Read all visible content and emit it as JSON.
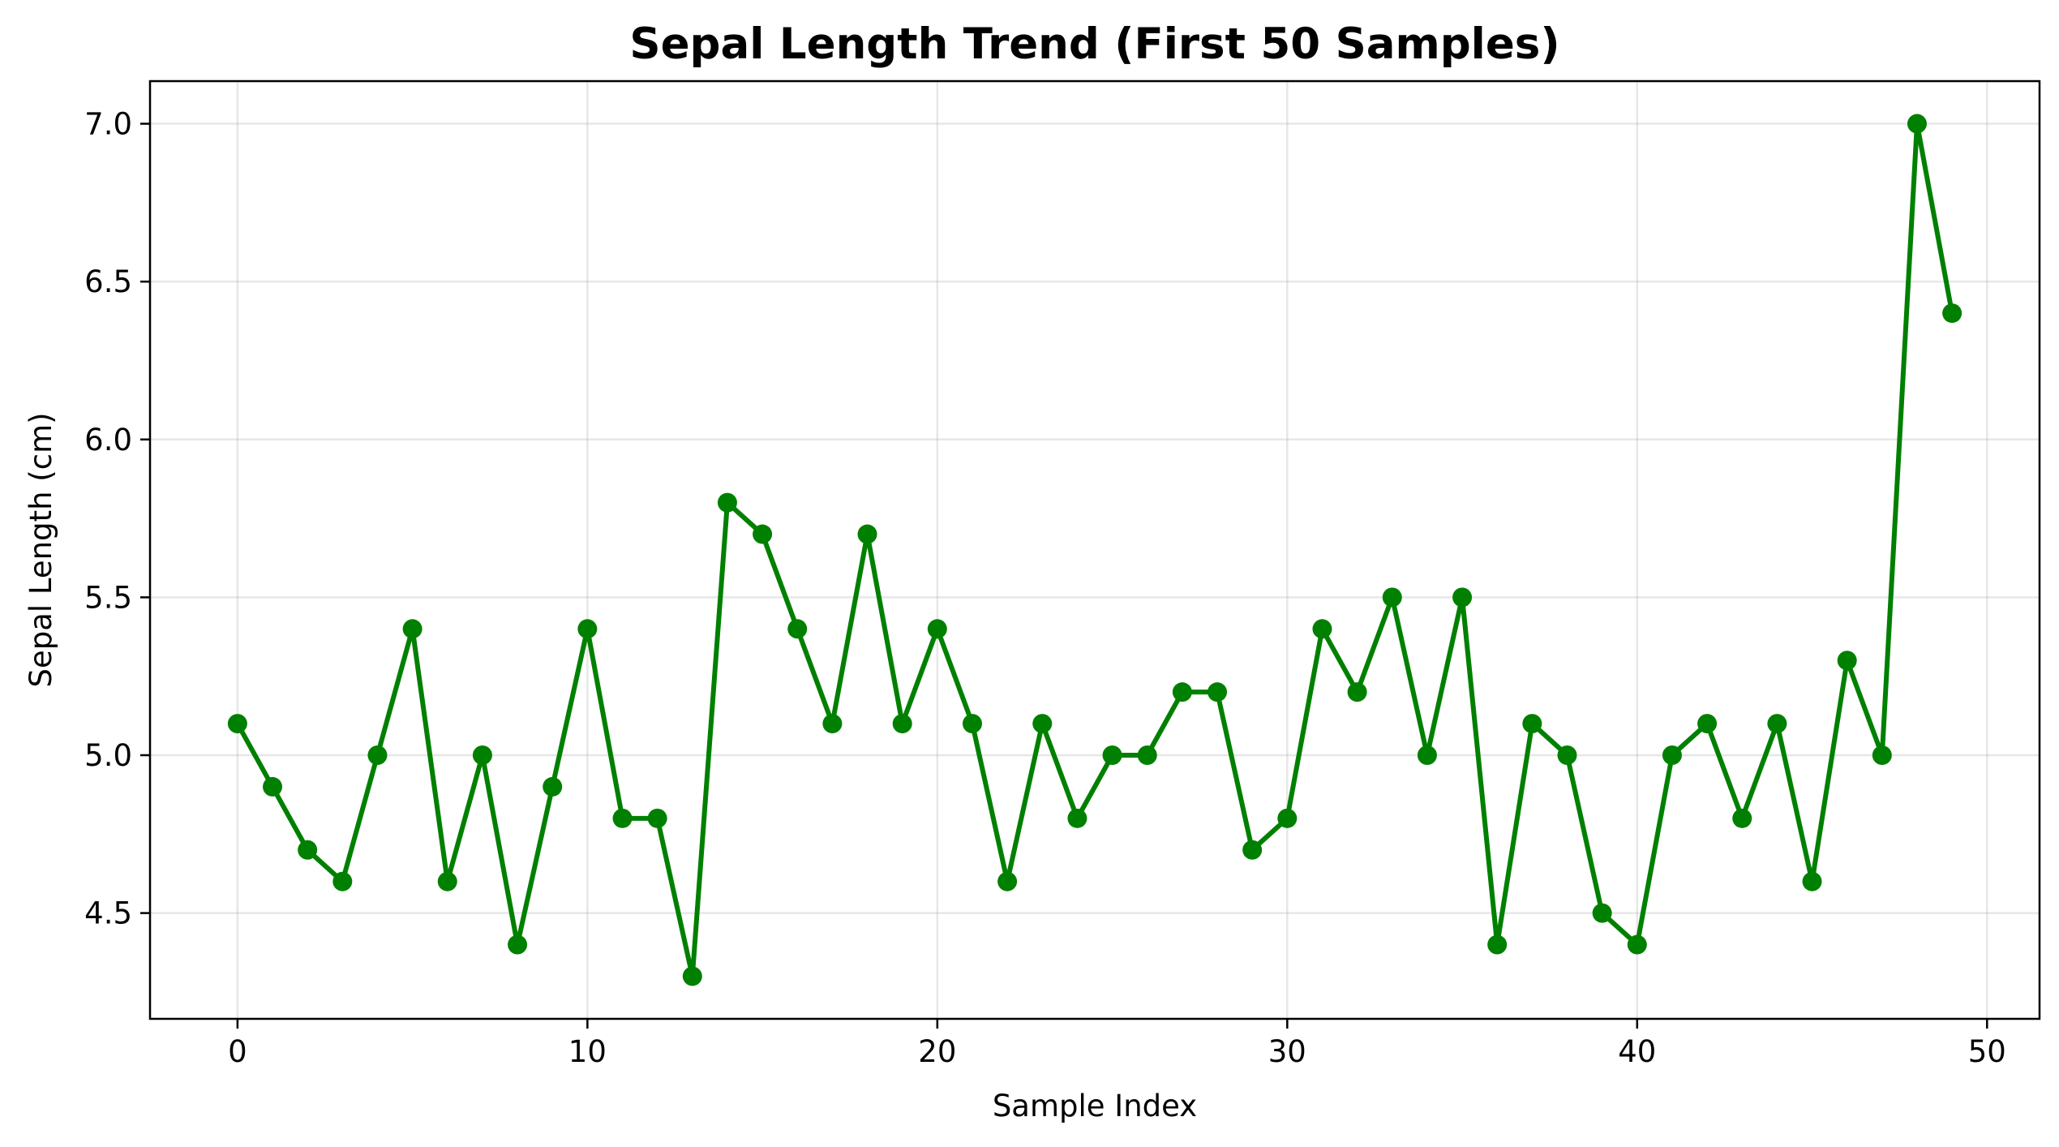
{
  "chart_data": {
    "type": "line",
    "title": "Sepal Length Trend (First 50 Samples)",
    "xlabel": "Sample Index",
    "ylabel": "Sepal Length (cm)",
    "xlim": [
      -2.5,
      51.5
    ],
    "ylim": [
      4.165,
      7.135
    ],
    "x_ticks": [
      0,
      10,
      20,
      30,
      40,
      50
    ],
    "x_tick_labels": [
      "0",
      "10",
      "20",
      "30",
      "40",
      "50"
    ],
    "y_ticks": [
      4.5,
      5.0,
      5.5,
      6.0,
      6.5,
      7.0
    ],
    "y_tick_labels": [
      "4.5",
      "5.0",
      "5.5",
      "6.0",
      "6.5",
      "7.0"
    ],
    "grid": true,
    "color": "#008000",
    "marker": "circle",
    "x": [
      0,
      1,
      2,
      3,
      4,
      5,
      6,
      7,
      8,
      9,
      10,
      11,
      12,
      13,
      14,
      15,
      16,
      17,
      18,
      19,
      20,
      21,
      22,
      23,
      24,
      25,
      26,
      27,
      28,
      29,
      30,
      31,
      32,
      33,
      34,
      35,
      36,
      37,
      38,
      39,
      40,
      41,
      42,
      43,
      44,
      45,
      46,
      47,
      48,
      49
    ],
    "y": [
      5.1,
      4.9,
      4.7,
      4.6,
      5.0,
      5.4,
      4.6,
      5.0,
      4.4,
      4.9,
      5.4,
      4.8,
      4.8,
      4.3,
      5.8,
      5.7,
      5.4,
      5.1,
      5.7,
      5.1,
      5.4,
      5.1,
      4.6,
      5.1,
      4.8,
      5.0,
      5.0,
      5.2,
      5.2,
      4.7,
      4.8,
      5.4,
      5.2,
      5.5,
      5.0,
      5.5,
      4.4,
      5.1,
      5.0,
      4.5,
      4.4,
      5.0,
      5.1,
      4.8,
      5.1,
      4.6,
      5.3,
      5.0,
      7.0,
      6.4
    ]
  }
}
